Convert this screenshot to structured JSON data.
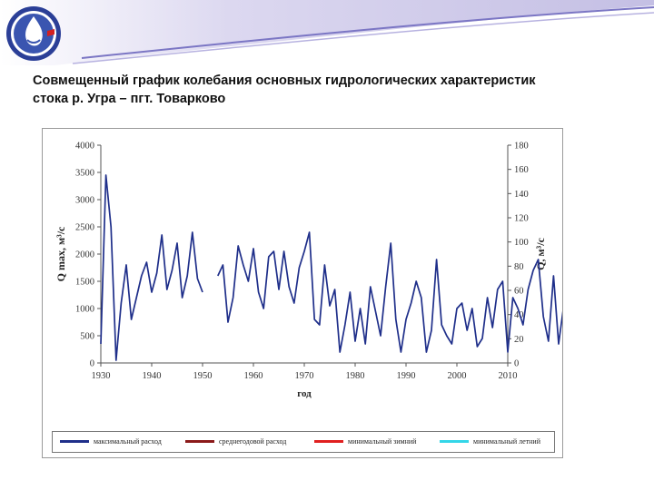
{
  "slide": {
    "title_line1": "Совмещенный график колебания основных гидрологических характеристик",
    "title_line2": "стока р. Угра – пгт. Товарково"
  },
  "header": {
    "logo_icon": "water-drop-emblem-icon",
    "colors": {
      "band_top": "#c9c4e6",
      "band_mid": "#6f6fb8",
      "accent_blue": "#2b3f97",
      "logo_red": "#d42020"
    }
  },
  "chart_data": {
    "type": "line",
    "title": "",
    "xlabel": "год",
    "ylabel_left": "Q max, м³/с",
    "ylabel_right": "Q, м³/с",
    "xlim": [
      1930,
      2010
    ],
    "ylim_left": [
      0,
      4000
    ],
    "ylim_right": [
      0,
      180
    ],
    "x_ticks": [
      "1930",
      "1940",
      "1950",
      "1960",
      "1970",
      "1980",
      "1990",
      "2000",
      "2010"
    ],
    "y_ticks_left": [
      "0",
      "500",
      "1000",
      "1500",
      "2000",
      "2500",
      "3000",
      "3500",
      "4000"
    ],
    "y_ticks_right": [
      "0",
      "20",
      "40",
      "60",
      "80",
      "100",
      "120",
      "140",
      "160",
      "180"
    ],
    "grid": false,
    "legend_position": "bottom",
    "series": [
      {
        "name": "максимальный расход",
        "color": "#1f2f8a",
        "axis": "left",
        "start": 1930,
        "values": [
          350,
          3450,
          2500,
          50,
          1100,
          1800,
          800,
          1200,
          1600,
          1850,
          1300,
          1650,
          2350,
          1350,
          1700,
          2200,
          1200,
          1600,
          2400,
          1550,
          1300,
          null,
          null,
          1600,
          1800,
          750,
          1200,
          2150,
          1800,
          1500,
          2100,
          1300,
          1000,
          1950,
          2050,
          1350,
          2050,
          1400,
          1100,
          1750,
          2050,
          2400,
          800,
          700,
          1800,
          1050,
          1350,
          200,
          700,
          1300,
          400,
          1000,
          350,
          1400,
          950,
          500,
          1400,
          2200,
          800,
          200,
          800,
          1100,
          1500,
          1200,
          200,
          600,
          1900,
          700,
          500,
          350,
          1000,
          1100,
          600,
          1000,
          300,
          450,
          1200,
          650,
          1350,
          1500,
          200,
          1200,
          1000,
          700,
          1350,
          1700,
          1900,
          850,
          400,
          1600,
          350,
          1050,
          1050,
          350,
          800,
          650,
          1050,
          1000
        ],
        "breaks": [
          [
            1944,
            1945
          ],
          [
            1976,
            1978
          ]
        ]
      }
    ],
    "series_note_omitted": false
  }
}
